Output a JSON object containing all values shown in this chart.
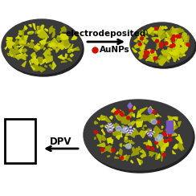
{
  "bg_color": "#ffffff",
  "electrode_color": "#3a3a3a",
  "electrode_edge": "#222222",
  "graphene_colors": [
    "#b8bc00",
    "#a0a400",
    "#ccd000",
    "#989c00",
    "#d4d800"
  ],
  "aunp_color": "#cc1100",
  "antibody_purple": "#7755bb",
  "antibody_white": "#e8e8e8",
  "antibody_stripe": "#9977cc",
  "antigen_color": "#8866cc",
  "light_blue": "#aabbdd",
  "arrow_label1": "electrodeposited",
  "arrow_label2": "AuNPs",
  "dpv_label": "DPV",
  "arrow_fontsize": 7.5,
  "dpv_fontsize": 8.5
}
